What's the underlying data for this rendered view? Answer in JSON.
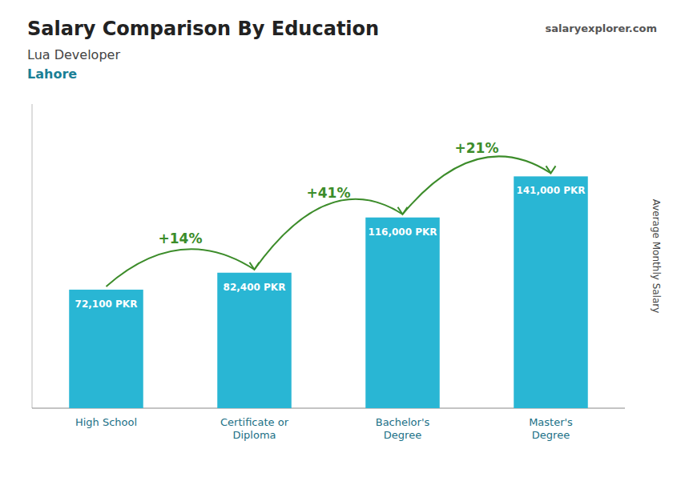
{
  "chart_data": {
    "type": "bar",
    "title": "Salary Comparison By Education",
    "subtitle": "Lua Developer",
    "location": "Lahore",
    "source": "salaryexplorer.com",
    "y_label": "Average Monthly Salary",
    "categories": [
      "High School",
      "Certificate or\nDiploma",
      "Bachelor's\nDegree",
      "Master's\nDegree"
    ],
    "values": [
      72100,
      82400,
      116000,
      141000
    ],
    "value_labels": [
      "72,100 PKR",
      "82,400 PKR",
      "116,000 PKR",
      "141,000 PKR"
    ],
    "data_labels": true,
    "annotations": [
      "+14%",
      "+41%",
      "+21%"
    ],
    "color": "#29b6d4",
    "ylim": [
      0,
      185000
    ],
    "tick_labels": "x"
  }
}
